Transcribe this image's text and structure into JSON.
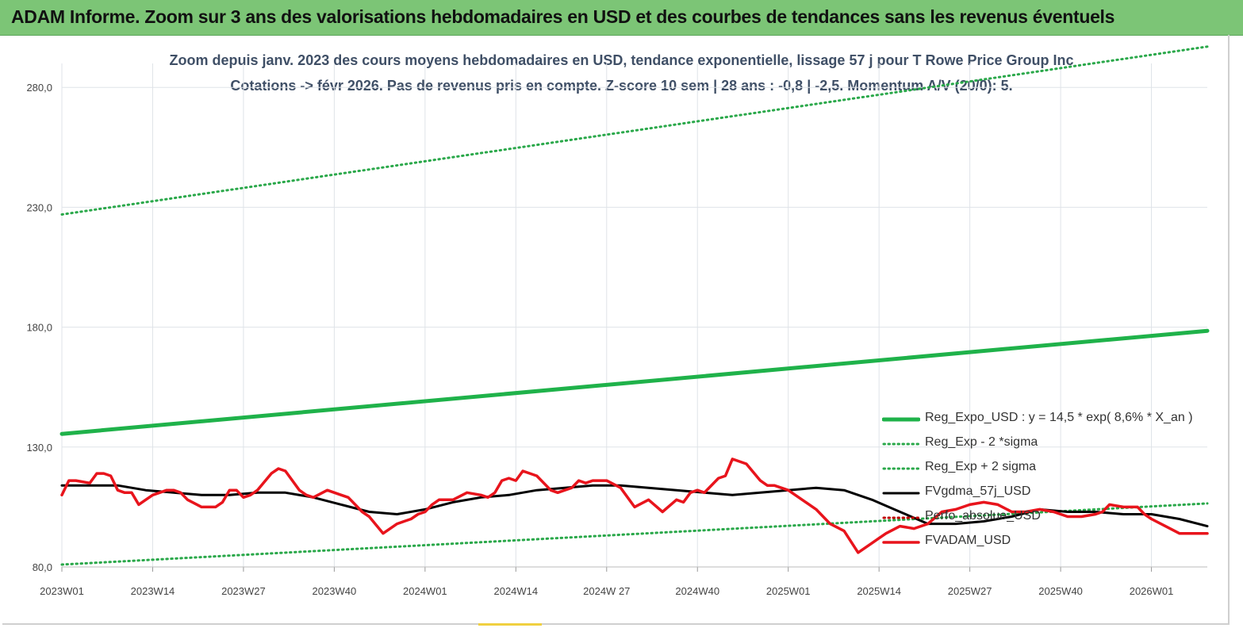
{
  "banner": {
    "title": "ADAM Informe. Zoom sur 3 ans des valorisations hebdomadaires en USD et des courbes de tendances sans les revenus éventuels",
    "color": "#7cc576"
  },
  "chart_data": {
    "type": "line",
    "title": "Zoom depuis janv. 2023 des cours moyens hebdomadaires en USD, tendance exponentielle, lissage 57 j pour T Rowe Price Group Inc",
    "subtitle": "Cotations -> févr 2026.  Pas de revenus pris en compte. Z-score 10 sem  | 28 ans : -0,8  | -2,5. Momentum A/V (20/0): 5.",
    "xlabel": "",
    "ylabel": "",
    "ylim": [
      80,
      290
    ],
    "yticks": [
      80,
      130,
      180,
      230,
      280
    ],
    "ytick_labels": [
      "80,0",
      "130,0",
      "180,0",
      "230,0",
      "280,0"
    ],
    "x_range_weeks": [
      0,
      164
    ],
    "xticks": [
      0,
      13,
      26,
      39,
      52,
      65,
      78,
      91,
      104,
      117,
      130,
      143,
      156
    ],
    "xtick_labels": [
      "2023W01",
      "2023W14",
      "2023W27",
      "2023W40",
      "2024W01",
      "2024W14",
      "2024W 27",
      "2024W40",
      "2025W01",
      "2025W14",
      "2025W27",
      "2025W40",
      "2026W01"
    ],
    "grid": true,
    "legend_position": "bottom-right",
    "series": [
      {
        "name": "Reg_Expo_USD : y = 14,5 * exp( 8,6% *  X_an )",
        "style": "solid-thick",
        "color": "#1fb24a",
        "x": [
          0,
          164
        ],
        "values": [
          135.5,
          178.5
        ]
      },
      {
        "name": "Reg_Exp - 2 *sigma",
        "style": "dotted",
        "color": "#2aa84a",
        "x": [
          0,
          164
        ],
        "values": [
          81,
          106.5
        ]
      },
      {
        "name": "Reg_Exp + 2 sigma",
        "style": "dotted",
        "color": "#2aa84a",
        "x": [
          0,
          164
        ],
        "values": [
          227,
          297
        ]
      },
      {
        "name": "FVgdma_57j_USD",
        "style": "solid",
        "color": "#000000",
        "x": [
          0,
          4,
          8,
          12,
          16,
          20,
          24,
          28,
          32,
          36,
          40,
          44,
          48,
          52,
          56,
          60,
          64,
          68,
          72,
          76,
          80,
          84,
          88,
          92,
          96,
          100,
          104,
          108,
          112,
          116,
          120,
          124,
          128,
          132,
          136,
          140,
          144,
          148,
          152,
          156,
          160,
          164
        ],
        "values": [
          114,
          114,
          114,
          112,
          111,
          110,
          110,
          111,
          111,
          109,
          106,
          103,
          102,
          104,
          107,
          109,
          110,
          112,
          113,
          114,
          114,
          113,
          112,
          111,
          110,
          111,
          112,
          113,
          112,
          108,
          103,
          98,
          98,
          99,
          101,
          104,
          103,
          103,
          102,
          102,
          100,
          97
        ]
      },
      {
        "name": "Perfo_absolue_USD",
        "style": "dotted",
        "color": "#c00000",
        "x": [],
        "values": []
      },
      {
        "name": "FVADAM_USD",
        "style": "solid-thick",
        "color": "#e8141c",
        "x": [
          0,
          1,
          2,
          4,
          5,
          6,
          7,
          8,
          9,
          10,
          11,
          12,
          13,
          14,
          15,
          16,
          17,
          18,
          20,
          22,
          23,
          24,
          25,
          26,
          27,
          28,
          30,
          31,
          32,
          34,
          35,
          36,
          38,
          40,
          41,
          42,
          43,
          44,
          46,
          48,
          49,
          50,
          51,
          52,
          53,
          54,
          56,
          58,
          60,
          61,
          62,
          63,
          64,
          65,
          66,
          68,
          70,
          71,
          72,
          73,
          74,
          75,
          76,
          78,
          80,
          82,
          84,
          86,
          88,
          89,
          90,
          91,
          92,
          94,
          95,
          96,
          98,
          100,
          101,
          102,
          103,
          104,
          106,
          108,
          110,
          112,
          114,
          116,
          117,
          118,
          120,
          122,
          124,
          126,
          128,
          130,
          132,
          134,
          136,
          138,
          140,
          142,
          144,
          146,
          148,
          149,
          150,
          152,
          154,
          155,
          156,
          158,
          160,
          162,
          164
        ],
        "values": [
          110,
          116,
          116,
          115,
          119,
          119,
          118,
          112,
          111,
          111,
          106,
          108,
          110,
          111,
          112,
          112,
          111,
          108,
          105,
          105,
          107,
          112,
          112,
          109,
          110,
          112,
          119,
          121,
          120,
          112,
          110,
          109,
          112,
          110,
          109,
          106,
          103,
          101,
          94,
          98,
          99,
          100,
          102,
          103,
          106,
          108,
          108,
          111,
          110,
          109,
          111,
          116,
          117,
          116,
          120,
          118,
          112,
          111,
          112,
          113,
          116,
          115,
          116,
          116,
          113,
          105,
          108,
          103,
          108,
          107,
          111,
          112,
          111,
          117,
          118,
          125,
          123,
          116,
          114,
          114,
          113,
          112,
          108,
          104,
          98,
          95,
          86,
          90,
          92,
          94,
          97,
          96,
          98,
          103,
          104,
          106,
          107,
          106,
          103,
          103,
          104,
          103,
          101,
          101,
          102,
          103,
          106,
          105,
          105,
          102,
          100,
          97,
          94,
          94,
          94
        ]
      }
    ]
  }
}
